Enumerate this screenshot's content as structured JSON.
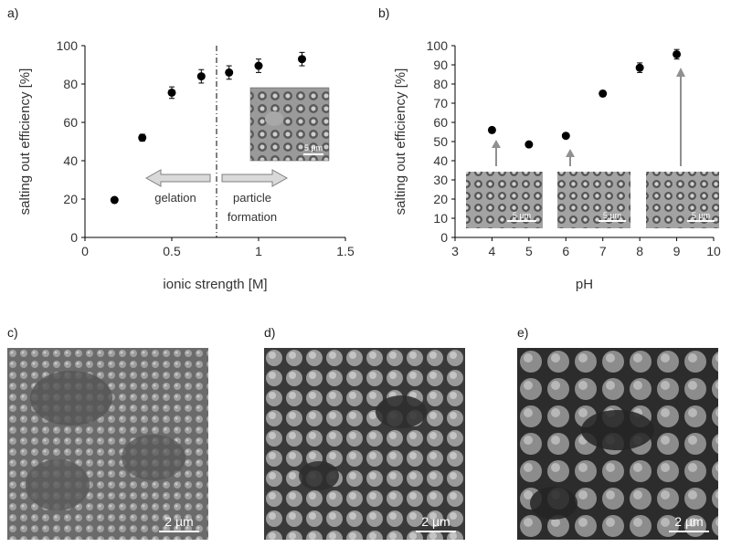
{
  "panels": {
    "a": "a)",
    "b": "b)",
    "c": "c)",
    "d": "d)",
    "e": "e)"
  },
  "chart_data": [
    {
      "type": "scatter",
      "panel": "a)",
      "xlabel": "ionic strength [M]",
      "ylabel": "salting out efficiency  [%]",
      "xlim": [
        0,
        1.5
      ],
      "ylim": [
        0,
        100
      ],
      "xticks": [
        "0",
        "0.5",
        "1",
        "1.5"
      ],
      "yticks": [
        "0",
        "20",
        "40",
        "60",
        "80",
        "100"
      ],
      "grid": false,
      "x": [
        0.17,
        0.33,
        0.5,
        0.67,
        0.83,
        1.0,
        1.25
      ],
      "y": [
        19.5,
        52,
        75.5,
        84,
        86,
        89.5,
        93
      ],
      "err": [
        1,
        1.8,
        3,
        3.5,
        3.5,
        3.5,
        3.5
      ],
      "divider_x": 0.75,
      "annotations": {
        "gelation": "gelation",
        "particle_1": "particle",
        "particle_2": "formation",
        "scale": "5 µm"
      }
    },
    {
      "type": "scatter",
      "panel": "b)",
      "xlabel": "pH",
      "ylabel": "salting out efficiency [%]",
      "xlim": [
        3,
        10
      ],
      "ylim": [
        0,
        100
      ],
      "xticks": [
        "3",
        "4",
        "5",
        "6",
        "7",
        "8",
        "9",
        "10"
      ],
      "yticks": [
        "0",
        "10",
        "20",
        "30",
        "40",
        "50",
        "60",
        "70",
        "80",
        "90",
        "100"
      ],
      "grid": false,
      "x": [
        4,
        5,
        6,
        7,
        8,
        9
      ],
      "y": [
        56,
        48.5,
        53,
        75,
        88.5,
        95.5
      ],
      "err": [
        1,
        1,
        1,
        1.5,
        2.5,
        2.5
      ],
      "annotations": {
        "scale_1": "5 µm",
        "scale_2": "5 µm",
        "scale_3": "5 µm"
      }
    }
  ],
  "sem": {
    "c_scale": "2 µm",
    "d_scale": "2 µm",
    "e_scale": "2 µm"
  },
  "colors": {
    "marker": "#000000",
    "arrow_fill": "#d9d9d9",
    "arrow_stroke": "#808080",
    "inset_arrow": "#909090"
  }
}
